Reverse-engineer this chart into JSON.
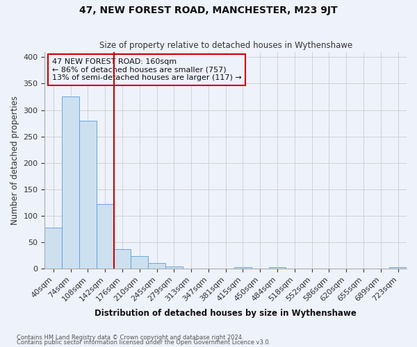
{
  "title": "47, NEW FOREST ROAD, MANCHESTER, M23 9JT",
  "subtitle": "Size of property relative to detached houses in Wythenshawe",
  "xlabel": "Distribution of detached houses by size in Wythenshawe",
  "ylabel": "Number of detached properties",
  "footnote1": "Contains HM Land Registry data © Crown copyright and database right 2024.",
  "footnote2": "Contains public sector information licensed under the Open Government Licence v3.0.",
  "bin_labels": [
    "40sqm",
    "74sqm",
    "108sqm",
    "142sqm",
    "176sqm",
    "210sqm",
    "245sqm",
    "279sqm",
    "313sqm",
    "347sqm",
    "381sqm",
    "415sqm",
    "450sqm",
    "484sqm",
    "518sqm",
    "552sqm",
    "586sqm",
    "620sqm",
    "655sqm",
    "689sqm",
    "723sqm"
  ],
  "bar_heights": [
    78,
    325,
    280,
    122,
    37,
    24,
    11,
    4,
    0,
    0,
    0,
    3,
    0,
    3,
    0,
    0,
    0,
    0,
    0,
    0,
    3
  ],
  "bar_color": "#cce0f0",
  "bar_edge_color": "#5b9bd5",
  "vline_x": 3.5,
  "vline_color": "#cc0000",
  "annotation_title": "47 NEW FOREST ROAD: 160sqm",
  "annotation_line1": "← 86% of detached houses are smaller (757)",
  "annotation_line2": "13% of semi-detached houses are larger (117) →",
  "annotation_box_color": "#cc0000",
  "ylim": [
    0,
    410
  ],
  "yticks": [
    0,
    50,
    100,
    150,
    200,
    250,
    300,
    350,
    400
  ],
  "grid_color": "#cccccc",
  "bg_color": "#eef2fb"
}
